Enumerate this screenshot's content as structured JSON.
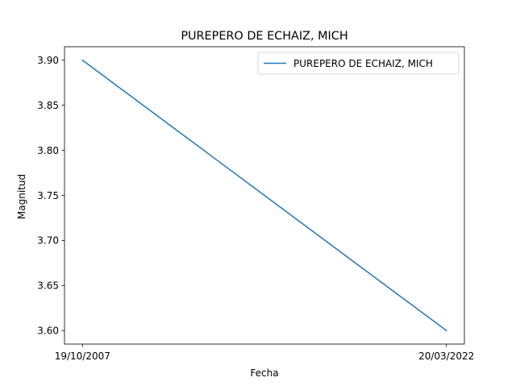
{
  "chart_data": {
    "type": "line",
    "title": "PUREPERO DE ECHAIZ, MICH",
    "xlabel": "Fecha",
    "ylabel": "Magnitud",
    "categories": [
      "19/10/2007",
      "20/03/2022"
    ],
    "series": [
      {
        "name": "PUREPERO DE ECHAIZ, MICH",
        "values": [
          3.9,
          3.6
        ],
        "color": "#1f77b4"
      }
    ],
    "ylim": [
      3.585,
      3.915
    ],
    "yticks": [
      "3.60",
      "3.65",
      "3.70",
      "3.75",
      "3.80",
      "3.85",
      "3.90"
    ],
    "grid": false,
    "legend_position": "upper right"
  }
}
